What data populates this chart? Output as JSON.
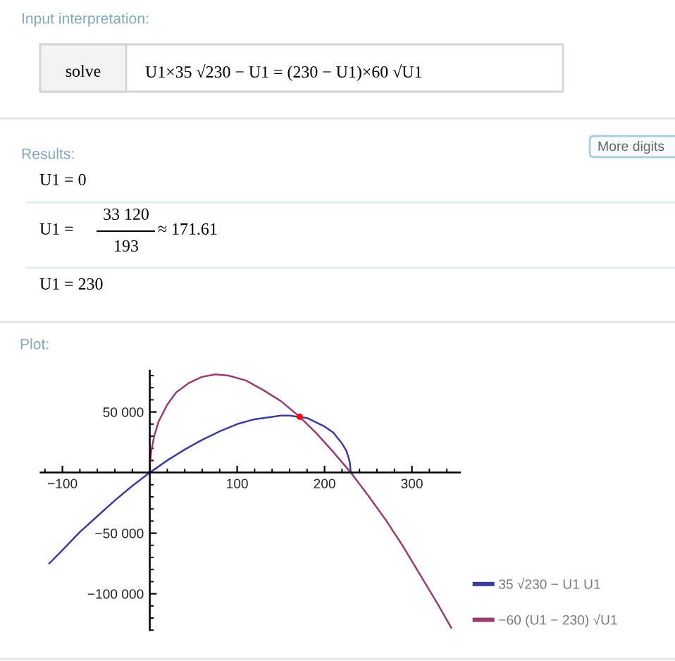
{
  "chart_data": {
    "type": "line",
    "title": "Plot:",
    "annotations": [
      "Input interpretation:",
      "solve",
      "U1×35 √230 − U1 = (230 − U1)×60 √U1",
      "Results:",
      "More digits",
      "U1 = 0",
      "U1 =",
      "33 120",
      "193",
      "≈ 171.61",
      "U1 = 230"
    ],
    "series": [
      {
        "name": "35 √230 − U1 U1",
        "color": "#3d3d99",
        "x": [
          -115,
          -100,
          -80,
          -60,
          -40,
          -20,
          0,
          20,
          40,
          60,
          80,
          100,
          120,
          140,
          150,
          160,
          180,
          200,
          210,
          220,
          225,
          228,
          229,
          230
        ],
        "values": [
          -75000,
          -64000,
          -49000,
          -36000,
          -23000,
          -11000,
          0,
          10000,
          19000,
          27000,
          34000,
          40000,
          44000,
          46000,
          47000,
          47000,
          45000,
          38000,
          33000,
          24000,
          18000,
          11000,
          8000,
          0
        ]
      },
      {
        "name": "−60 (U1 − 230) √U1",
        "color": "#993d71",
        "x": [
          0,
          0.5,
          2,
          5,
          10,
          20,
          30,
          45,
          60,
          75,
          90,
          110,
          130,
          150,
          170,
          190,
          210,
          230,
          250,
          270,
          290,
          310,
          330,
          345
        ],
        "values": [
          0,
          10000,
          19000,
          30000,
          42000,
          56000,
          66000,
          74000,
          79000,
          81000,
          80000,
          76000,
          68000,
          59000,
          47000,
          33000,
          17000,
          0,
          -19000,
          -39000,
          -61000,
          -85000,
          -109000,
          -128000
        ]
      },
      {
        "type": "scatter",
        "color": "#ff0000",
        "marker": "circle",
        "x": [
          171.61
        ],
        "values": [
          46000
        ]
      }
    ],
    "xlim": [
      -125,
      355
    ],
    "ylim": [
      -130000,
      84000
    ],
    "xticks": [
      {
        "value": -120,
        "label": null
      },
      {
        "value": -100,
        "label": "−100"
      },
      {
        "value": -80,
        "label": null
      },
      {
        "value": -60,
        "label": null
      },
      {
        "value": -40,
        "label": null
      },
      {
        "value": -20,
        "label": null
      },
      {
        "value": 20,
        "label": null
      },
      {
        "value": 40,
        "label": null
      },
      {
        "value": 60,
        "label": null
      },
      {
        "value": 80,
        "label": null
      },
      100,
      {
        "value": 120,
        "label": null
      },
      {
        "value": 140,
        "label": null
      },
      {
        "value": 160,
        "label": null
      },
      {
        "value": 180,
        "label": null
      },
      200,
      {
        "value": 220,
        "label": null
      },
      {
        "value": 240,
        "label": null
      },
      {
        "value": 260,
        "label": null
      },
      {
        "value": 280,
        "label": null
      },
      300,
      {
        "value": 320,
        "label": null
      },
      {
        "value": 340,
        "label": null
      }
    ],
    "yticks": [
      {
        "value": -130000,
        "label": null
      },
      {
        "value": -120000,
        "label": null
      },
      {
        "value": -110000,
        "label": null
      },
      {
        "value": -100000,
        "label": "−100 000"
      },
      {
        "value": -90000,
        "label": null
      },
      {
        "value": -80000,
        "label": null
      },
      {
        "value": -70000,
        "label": null
      },
      {
        "value": -60000,
        "label": null
      },
      {
        "value": -50000,
        "label": "−50 000"
      },
      {
        "value": -40000,
        "label": null
      },
      {
        "value": -30000,
        "label": null
      },
      {
        "value": -20000,
        "label": null
      },
      {
        "value": -10000,
        "label": null
      },
      {
        "value": 10000,
        "label": null
      },
      {
        "value": 20000,
        "label": null
      },
      {
        "value": 30000,
        "label": null
      },
      {
        "value": 40000,
        "label": null
      },
      {
        "value": 50000,
        "label": "50 000"
      },
      {
        "value": 60000,
        "label": null
      },
      {
        "value": 70000,
        "label": null
      },
      {
        "value": 80000,
        "label": null
      }
    ],
    "legend": "bottom right"
  }
}
